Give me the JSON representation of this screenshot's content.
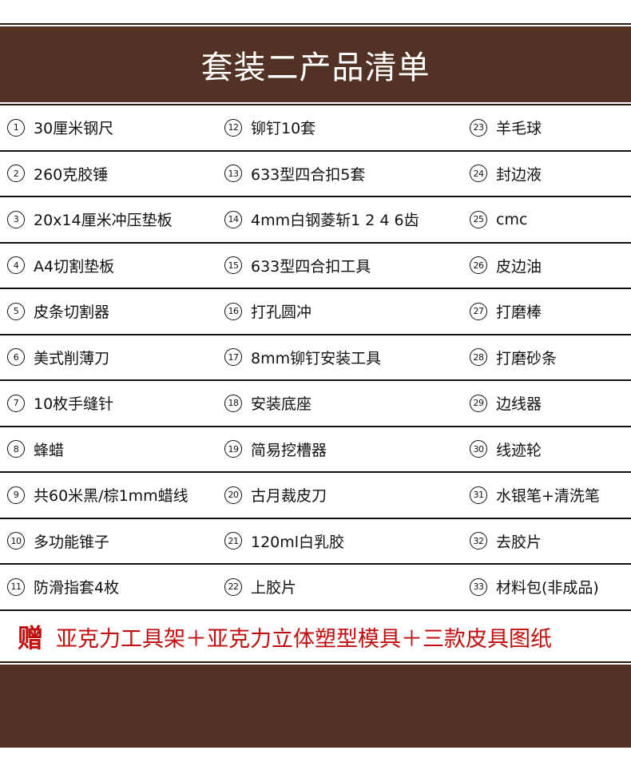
{
  "header": {
    "title": "套装二产品清单"
  },
  "colors": {
    "brown": "#523224",
    "gift_red": "#c00d0d"
  },
  "rows": [
    [
      {
        "n": "1",
        "t": "30厘米钢尺"
      },
      {
        "n": "12",
        "t": "铆钉10套"
      },
      {
        "n": "23",
        "t": "羊毛球"
      }
    ],
    [
      {
        "n": "2",
        "t": "260克胶锤"
      },
      {
        "n": "13",
        "t": "633型四合扣5套"
      },
      {
        "n": "24",
        "t": "封边液"
      }
    ],
    [
      {
        "n": "3",
        "t": "20x14厘米冲压垫板"
      },
      {
        "n": "14",
        "t": "4mm白钢菱斩1 2 4 6齿"
      },
      {
        "n": "25",
        "t": " cmc"
      }
    ],
    [
      {
        "n": "4",
        "t": " A4切割垫板"
      },
      {
        "n": "15",
        "t": "633型四合扣工具"
      },
      {
        "n": "26",
        "t": "皮边油"
      }
    ],
    [
      {
        "n": "5",
        "t": "皮条切割器"
      },
      {
        "n": "16",
        "t": "打孔圆冲"
      },
      {
        "n": "27",
        "t": "打磨棒"
      }
    ],
    [
      {
        "n": "6",
        "t": "美式削薄刀"
      },
      {
        "n": "17",
        "t": "8mm铆钉安装工具"
      },
      {
        "n": "28",
        "t": "打磨砂条"
      }
    ],
    [
      {
        "n": "7",
        "t": "10枚手缝针"
      },
      {
        "n": "18",
        "t": "安装底座"
      },
      {
        "n": "29",
        "t": "边线器"
      }
    ],
    [
      {
        "n": "8",
        "t": "蜂蜡"
      },
      {
        "n": "19",
        "t": "简易挖槽器"
      },
      {
        "n": "30",
        "t": "线迹轮"
      }
    ],
    [
      {
        "n": "9",
        "t": "共60米黑/棕1mm蜡线"
      },
      {
        "n": "20",
        "t": "古月裁皮刀"
      },
      {
        "n": "31",
        "t": "水银笔+清洗笔"
      }
    ],
    [
      {
        "n": "10",
        "t": "多功能锥子"
      },
      {
        "n": "21",
        "t": "120ml白乳胶"
      },
      {
        "n": "32",
        "t": "去胶片"
      }
    ],
    [
      {
        "n": "11",
        "t": "防滑指套4枚"
      },
      {
        "n": "22",
        "t": "上胶片"
      },
      {
        "n": "33",
        "t": "材料包(非成品)"
      }
    ]
  ],
  "gift": {
    "mark": "赠",
    "text": "亚克力工具架＋亚克力立体塑型模具＋三款皮具图纸"
  }
}
